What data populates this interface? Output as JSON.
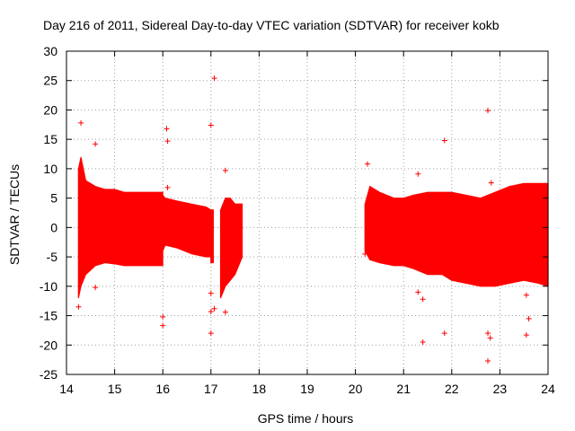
{
  "chart_data": {
    "type": "scatter",
    "title": "Day 216 of 2011, Sidereal Day-to-day VTEC variation (SDTVAR) for receiver kokb",
    "xlabel": "GPS time / hours",
    "ylabel": "SDTVAR / TECUs",
    "xlim": [
      14,
      24
    ],
    "ylim": [
      -25,
      30
    ],
    "xticks": [
      14,
      15,
      16,
      17,
      18,
      19,
      20,
      21,
      22,
      23,
      24
    ],
    "yticks": [
      -25,
      -20,
      -15,
      -10,
      -5,
      0,
      5,
      10,
      15,
      20,
      25,
      30
    ],
    "grid": true,
    "series_color": "#ff0000",
    "envelope_segments": [
      {
        "x": [
          14.25,
          14.3,
          14.4,
          14.6,
          14.8,
          15.0,
          15.2,
          15.5,
          15.8,
          16.0
        ],
        "upper": [
          10,
          12,
          8,
          7,
          6.5,
          6.5,
          6,
          6,
          6,
          6
        ],
        "lower": [
          -12,
          -10,
          -8,
          -6.5,
          -6,
          -6.2,
          -6.5,
          -6.5,
          -6.5,
          -6.5
        ]
      },
      {
        "x": [
          16.0,
          16.05,
          16.3,
          16.6,
          16.9,
          17.0
        ],
        "upper": [
          5.5,
          5,
          4.5,
          4,
          3.5,
          3
        ],
        "lower": [
          -4,
          -3,
          -3.5,
          -4.5,
          -5,
          -5
        ]
      },
      {
        "x": [
          17.0,
          17.05
        ],
        "upper": [
          3,
          3
        ],
        "lower": [
          -6,
          -6
        ]
      },
      {
        "x": [
          17.2,
          17.3,
          17.4,
          17.5,
          17.65
        ],
        "upper": [
          3,
          5,
          5,
          4,
          4
        ],
        "lower": [
          -12,
          -10,
          -9,
          -8,
          -5
        ]
      },
      {
        "x": [
          20.2,
          20.3,
          20.5,
          20.8,
          21.0,
          21.2,
          21.5,
          21.8,
          22.0,
          22.3,
          22.6,
          22.9,
          23.2,
          23.5,
          23.8,
          24.0
        ],
        "upper": [
          4,
          7,
          6,
          5,
          5,
          5.5,
          6,
          6,
          6,
          5.5,
          5,
          6,
          7,
          7.5,
          7.5,
          7.5
        ],
        "lower": [
          -4,
          -5.5,
          -6,
          -6.5,
          -6.5,
          -7,
          -8,
          -8,
          -9,
          -9.5,
          -10,
          -10,
          -9.5,
          -9,
          -9.5,
          -10
        ]
      }
    ],
    "outliers": [
      {
        "x": 14.3,
        "y": 17.8
      },
      {
        "x": 14.6,
        "y": 14.2
      },
      {
        "x": 14.25,
        "y": -13.5
      },
      {
        "x": 14.6,
        "y": -10.2
      },
      {
        "x": 16.0,
        "y": -15.2
      },
      {
        "x": 16.0,
        "y": -16.7
      },
      {
        "x": 16.08,
        "y": 16.8
      },
      {
        "x": 16.1,
        "y": 14.7
      },
      {
        "x": 16.1,
        "y": 6.8
      },
      {
        "x": 17.0,
        "y": 17.4
      },
      {
        "x": 17.07,
        "y": 25.4
      },
      {
        "x": 17.0,
        "y": -11.2
      },
      {
        "x": 17.0,
        "y": -14.3
      },
      {
        "x": 17.0,
        "y": -18.0
      },
      {
        "x": 17.07,
        "y": -13.8
      },
      {
        "x": 17.3,
        "y": 9.7
      },
      {
        "x": 17.3,
        "y": -14.4
      },
      {
        "x": 20.25,
        "y": 10.8
      },
      {
        "x": 20.2,
        "y": -4.5
      },
      {
        "x": 21.3,
        "y": 9.1
      },
      {
        "x": 21.3,
        "y": -11.0
      },
      {
        "x": 21.4,
        "y": -19.5
      },
      {
        "x": 21.4,
        "y": -12.2
      },
      {
        "x": 21.85,
        "y": 14.8
      },
      {
        "x": 21.85,
        "y": -18.0
      },
      {
        "x": 22.75,
        "y": 19.9
      },
      {
        "x": 22.82,
        "y": 7.6
      },
      {
        "x": 22.75,
        "y": -22.7
      },
      {
        "x": 22.75,
        "y": -18.0
      },
      {
        "x": 22.8,
        "y": -18.8
      },
      {
        "x": 23.55,
        "y": -11.5
      },
      {
        "x": 23.6,
        "y": -15.5
      },
      {
        "x": 23.55,
        "y": -18.3
      }
    ]
  }
}
